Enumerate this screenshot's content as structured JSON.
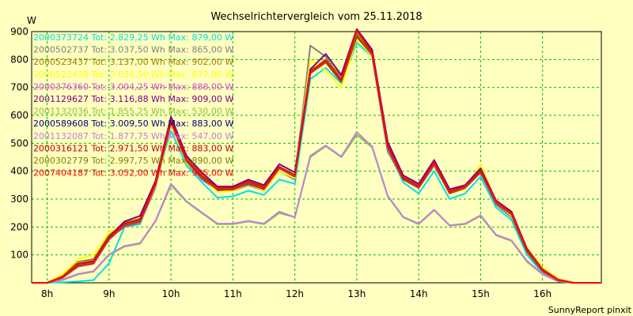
{
  "chart_data": {
    "type": "line",
    "title": "Wechselrichtervergleich vom 25.11.2018",
    "ylabel": "W",
    "footer": "SunnyReport pinxit",
    "ylim": [
      0,
      900
    ],
    "xlim": [
      7.75,
      16.95
    ],
    "y_ticks": [
      100,
      200,
      300,
      400,
      500,
      600,
      700,
      800,
      900
    ],
    "x_ticks": [
      {
        "x": 8,
        "label": "8h"
      },
      {
        "x": 9,
        "label": "9h"
      },
      {
        "x": 10,
        "label": "10h"
      },
      {
        "x": 11,
        "label": "11h"
      },
      {
        "x": 12,
        "label": "12h"
      },
      {
        "x": 13,
        "label": "13h"
      },
      {
        "x": 14,
        "label": "14h"
      },
      {
        "x": 15,
        "label": "15h"
      },
      {
        "x": 16,
        "label": "16h"
      }
    ],
    "grid": true,
    "legend_position": "top-left",
    "x": [
      7.75,
      8.0,
      8.25,
      8.5,
      8.75,
      9.0,
      9.25,
      9.5,
      9.75,
      10.0,
      10.25,
      10.5,
      10.75,
      11.0,
      11.25,
      11.5,
      11.75,
      12.0,
      12.25,
      12.5,
      12.75,
      13.0,
      13.25,
      13.5,
      13.75,
      14.0,
      14.25,
      14.5,
      14.75,
      15.0,
      15.25,
      15.5,
      15.75,
      16.0,
      16.25,
      16.5,
      16.75,
      16.95
    ],
    "series": [
      {
        "name": "2000373724 Tot: 2.829,25 Wh Max: 879,00 W",
        "color": "#00e0e0",
        "values": [
          0,
          0,
          2,
          5,
          10,
          70,
          200,
          210,
          360,
          545,
          420,
          360,
          305,
          310,
          330,
          315,
          370,
          355,
          730,
          770,
          715,
          860,
          810,
          480,
          360,
          320,
          400,
          300,
          320,
          380,
          270,
          225,
          100,
          35,
          5,
          0,
          0,
          0
        ]
      },
      {
        "name": "2000502737 Tot: 3.037,50 Wh Max: 865,00 W",
        "color": "#808080",
        "values": [
          0,
          0,
          20,
          60,
          70,
          160,
          200,
          215,
          340,
          570,
          430,
          370,
          330,
          330,
          350,
          330,
          400,
          370,
          850,
          810,
          730,
          880,
          810,
          470,
          370,
          340,
          420,
          320,
          340,
          395,
          280,
          235,
          110,
          40,
          8,
          0,
          0,
          0
        ]
      },
      {
        "name": "2000523437 Tot: 3.137,00 Wh Max: 902,00 W",
        "color": "#a08000",
        "values": [
          0,
          0,
          25,
          75,
          85,
          170,
          215,
          230,
          360,
          590,
          450,
          390,
          340,
          345,
          365,
          345,
          415,
          385,
          760,
          800,
          740,
          900,
          830,
          500,
          380,
          350,
          435,
          330,
          345,
          405,
          290,
          250,
          120,
          50,
          12,
          0,
          0,
          0
        ]
      },
      {
        "name": "2000523439 Tot: 3.034,50 Wh Max: 877,00 W",
        "color": "#ffff00",
        "values": [
          0,
          0,
          30,
          85,
          100,
          180,
          210,
          225,
          345,
          570,
          430,
          380,
          325,
          330,
          355,
          330,
          400,
          375,
          800,
          760,
          700,
          875,
          810,
          490,
          375,
          345,
          425,
          320,
          335,
          425,
          290,
          240,
          125,
          55,
          15,
          0,
          0,
          0
        ]
      },
      {
        "name": "2000376360 Tot: 3.004,25 Wh Max: 888,00 W",
        "color": "#e040e0",
        "values": [
          0,
          0,
          18,
          58,
          68,
          155,
          205,
          220,
          350,
          575,
          435,
          375,
          335,
          335,
          355,
          335,
          410,
          380,
          750,
          790,
          720,
          885,
          815,
          485,
          370,
          340,
          425,
          320,
          340,
          395,
          285,
          245,
          112,
          42,
          8,
          0,
          0,
          0
        ]
      },
      {
        "name": "2001129627 Tot: 3.116,88 Wh Max: 909,00 W",
        "color": "#800080",
        "values": [
          0,
          0,
          22,
          68,
          78,
          165,
          220,
          240,
          365,
          595,
          455,
          395,
          345,
          345,
          370,
          350,
          425,
          395,
          765,
          820,
          745,
          909,
          835,
          505,
          385,
          355,
          440,
          335,
          350,
          410,
          295,
          255,
          122,
          48,
          12,
          0,
          0,
          0
        ]
      },
      {
        "name": "2001132036 Tot: 1.855,25 Wh Max: 530,00 W",
        "color": "#90c040",
        "values": [
          0,
          0,
          10,
          30,
          40,
          100,
          130,
          140,
          220,
          350,
          290,
          250,
          210,
          210,
          220,
          210,
          250,
          235,
          450,
          490,
          450,
          530,
          485,
          310,
          235,
          210,
          260,
          205,
          210,
          240,
          170,
          150,
          75,
          30,
          5,
          0,
          0,
          0
        ]
      },
      {
        "name": "2000589608 Tot: 3.009,50 Wh Max: 883,00 W",
        "color": "#000080",
        "values": [
          0,
          0,
          20,
          62,
          72,
          158,
          208,
          222,
          352,
          578,
          438,
          378,
          336,
          336,
          358,
          338,
          412,
          382,
          752,
          792,
          722,
          883,
          818,
          488,
          372,
          342,
          428,
          322,
          342,
          398,
          288,
          246,
          114,
          44,
          9,
          0,
          0,
          0
        ]
      },
      {
        "name": "2001132087 Tot: 1.877,75 Wh Max: 547,00 W",
        "color": "#c080e0",
        "values": [
          0,
          0,
          12,
          32,
          42,
          102,
          132,
          142,
          222,
          355,
          292,
          252,
          212,
          212,
          222,
          212,
          255,
          235,
          455,
          492,
          452,
          540,
          488,
          312,
          236,
          212,
          262,
          206,
          212,
          242,
          172,
          152,
          78,
          32,
          6,
          0,
          0,
          0
        ]
      },
      {
        "name": "2000316121 Tot: 2.971,50 Wh Max: 883,00 W",
        "color": "#c00000",
        "values": [
          0,
          0,
          19,
          61,
          71,
          157,
          207,
          221,
          351,
          577,
          437,
          377,
          334,
          334,
          356,
          336,
          411,
          381,
          751,
          791,
          721,
          883,
          817,
          487,
          371,
          341,
          427,
          321,
          341,
          397,
          287,
          245,
          113,
          43,
          9,
          0,
          0,
          0
        ]
      },
      {
        "name": "2000302779 Tot: 2.997,75 Wh Max: 890,00 W",
        "color": "#808000",
        "values": [
          0,
          0,
          21,
          63,
          73,
          159,
          209,
          223,
          353,
          579,
          439,
          379,
          337,
          337,
          359,
          339,
          413,
          383,
          753,
          793,
          723,
          890,
          819,
          489,
          373,
          343,
          429,
          323,
          343,
          399,
          289,
          247,
          115,
          45,
          10,
          0,
          0,
          0
        ]
      },
      {
        "name": "2007404187 Tot: 3.052,00 Wh Max: 905,00 W",
        "color": "#ff0000",
        "values": [
          0,
          0,
          23,
          66,
          76,
          162,
          212,
          226,
          356,
          582,
          442,
          382,
          340,
          340,
          362,
          342,
          416,
          386,
          756,
          796,
          726,
          905,
          822,
          492,
          376,
          346,
          432,
          326,
          346,
          402,
          292,
          250,
          118,
          47,
          11,
          0,
          0,
          0
        ]
      }
    ]
  }
}
